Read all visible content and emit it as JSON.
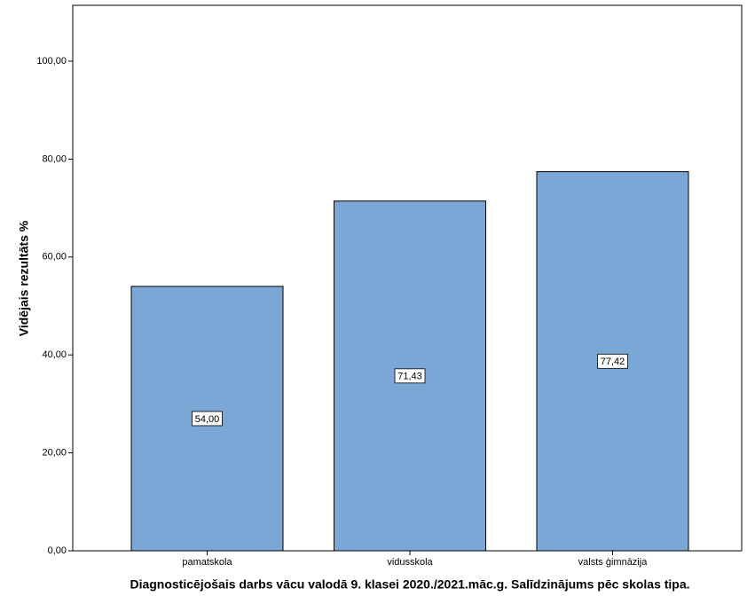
{
  "chart_data": {
    "type": "bar",
    "x_label": "Diagnosticējošais darbs vācu valodā 9. klasei 2020./2021.māc.g. Salīdzinājums pēc skolas tipa.",
    "y_label": "Vidējais rezultāts %",
    "categories": [
      "pamatskola",
      "vidusskola",
      "valsts ģimnāzija"
    ],
    "values": [
      54.0,
      71.43,
      77.42
    ],
    "value_labels": [
      "54,00",
      "71,43",
      "77,42"
    ],
    "color": "#7ba7d6",
    "ylim": [
      0,
      111.4
    ],
    "yticks": [
      {
        "value": 0,
        "label": "0,00"
      },
      {
        "value": 20,
        "label": "20,00"
      },
      {
        "value": 40,
        "label": "40,00"
      },
      {
        "value": 60,
        "label": "60,00"
      },
      {
        "value": 80,
        "label": "80,00"
      },
      {
        "value": 100,
        "label": "100,00"
      }
    ]
  }
}
